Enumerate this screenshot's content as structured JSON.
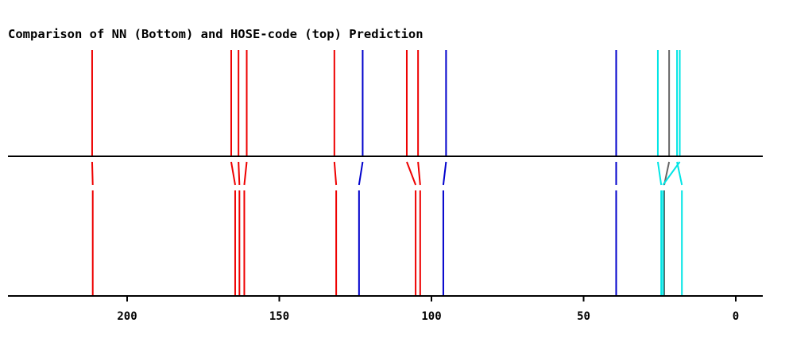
{
  "chart_data": {
    "type": "stick-spectrum-comparison",
    "title": "Comparison of NN (Bottom) and HOSE-code (top) Prediction",
    "xlim": [
      239,
      -9
    ],
    "xticks": [
      200,
      150,
      100,
      50,
      0
    ],
    "xtick_labels": [
      "200",
      "150",
      "100",
      "50",
      "0"
    ],
    "colors": {
      "red": "#ee0000",
      "blue": "#0000cc",
      "cyan": "#00e5e5",
      "gray": "#666666"
    },
    "peaks": [
      {
        "top": 211.5,
        "bottom": 211.3,
        "color": "red"
      },
      {
        "top": 165.8,
        "bottom": 164.5,
        "color": "red"
      },
      {
        "top": 163.4,
        "bottom": 163.1,
        "color": "red"
      },
      {
        "top": 160.7,
        "bottom": 161.5,
        "color": "red"
      },
      {
        "top": 131.9,
        "bottom": 131.3,
        "color": "red"
      },
      {
        "top": 122.6,
        "bottom": 123.8,
        "color": "blue"
      },
      {
        "top": 108.1,
        "bottom": 105.2,
        "color": "red"
      },
      {
        "top": 104.4,
        "bottom": 103.7,
        "color": "red"
      },
      {
        "top": 95.2,
        "bottom": 96.1,
        "color": "blue"
      },
      {
        "top": 39.3,
        "bottom": 39.3,
        "color": "blue"
      },
      {
        "top": 25.6,
        "bottom": 24.5,
        "color": "cyan"
      },
      {
        "top": 21.9,
        "bottom": 23.5,
        "color": "gray"
      },
      {
        "top": 19.3,
        "bottom": 17.7,
        "color": "cyan"
      },
      {
        "top": 18.4,
        "bottom": 23.9,
        "color": "cyan"
      }
    ]
  }
}
